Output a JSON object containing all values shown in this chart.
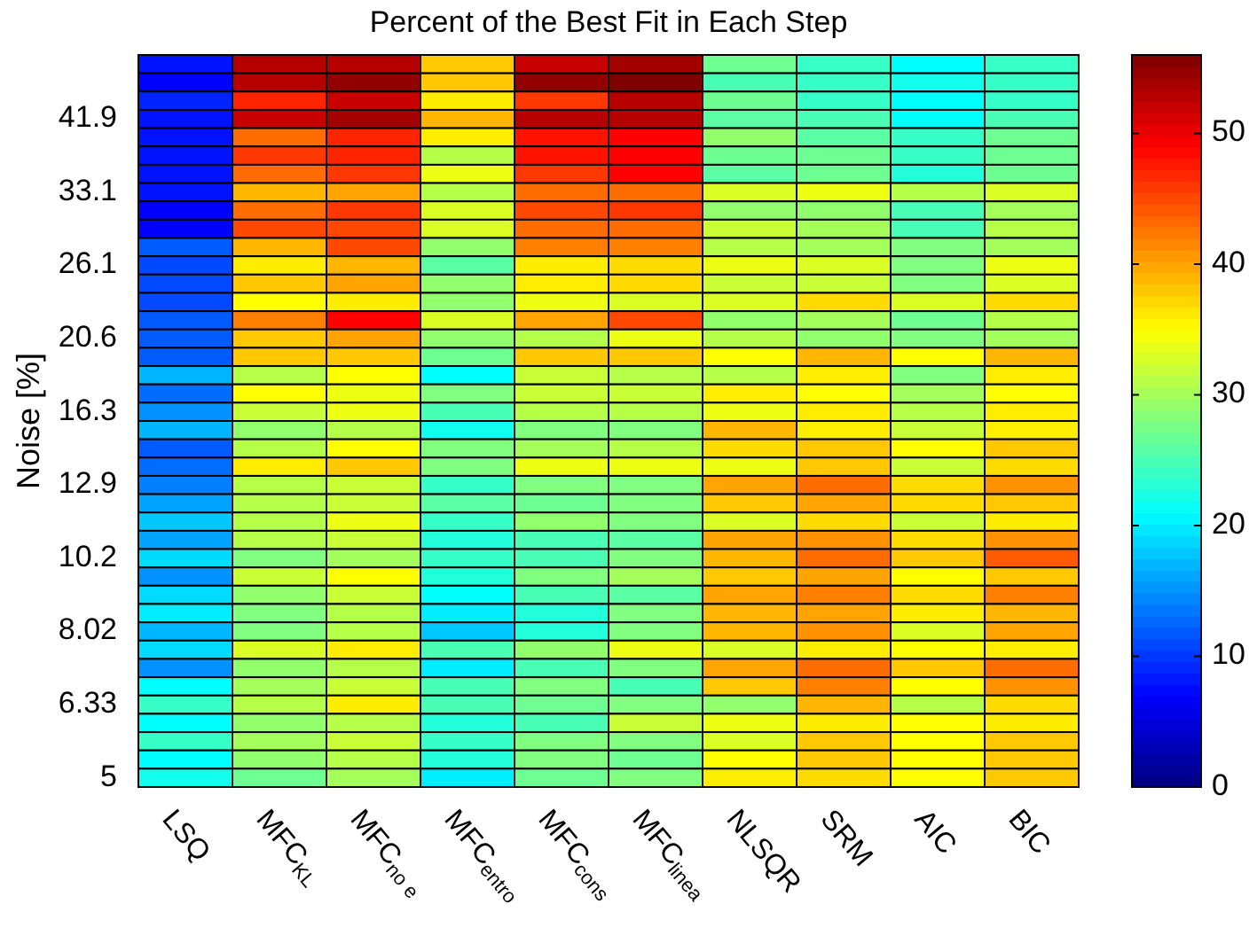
{
  "chart_data": {
    "type": "heatmap",
    "title": "Percent of the Best Fit in Each Step",
    "ylabel": "Noise [%]",
    "categories": [
      "LSQ",
      "MFC$_{KL}$",
      "MFC$_{no e}$",
      "MFC$_{entro}$",
      "MFC$_{cons}$",
      "MFC$_{linea}$",
      "NLSQR",
      "SRM",
      "AIC",
      "BIC"
    ],
    "y_categories": [
      null,
      null,
      null,
      "41.9",
      null,
      null,
      null,
      "33.1",
      null,
      null,
      null,
      "26.1",
      null,
      null,
      null,
      "20.6",
      null,
      null,
      null,
      "16.3",
      null,
      null,
      null,
      "12.9",
      null,
      null,
      null,
      "10.2",
      null,
      null,
      null,
      "8.02",
      null,
      null,
      null,
      "6.33",
      null,
      null,
      null,
      "5"
    ],
    "cells": [
      [
        8,
        53,
        53,
        38,
        52,
        54,
        27,
        24,
        21,
        24
      ],
      [
        7,
        53,
        55,
        38,
        55,
        56,
        25,
        24,
        22,
        24
      ],
      [
        9,
        47,
        52,
        36,
        46,
        53,
        27,
        24,
        21,
        24
      ],
      [
        8,
        52,
        54,
        39,
        53,
        53,
        26,
        25,
        21,
        25
      ],
      [
        8,
        43,
        47,
        36,
        48,
        49,
        29,
        26,
        24,
        27
      ],
      [
        8,
        46,
        47,
        31,
        48,
        49,
        27,
        27,
        24,
        27
      ],
      [
        8,
        43,
        46,
        34,
        46,
        49,
        26,
        27,
        23,
        27
      ],
      [
        8,
        39,
        40,
        31,
        43,
        43,
        33,
        34,
        31,
        33
      ],
      [
        7,
        43,
        46,
        33,
        45,
        46,
        29,
        29,
        25,
        30
      ],
      [
        7,
        45,
        45,
        33,
        43,
        43,
        32,
        30,
        25,
        31
      ],
      [
        12,
        39,
        45,
        29,
        42,
        42,
        31,
        30,
        28,
        30
      ],
      [
        11,
        36,
        39,
        26,
        36,
        37,
        34,
        33,
        28,
        34
      ],
      [
        11,
        38,
        40,
        29,
        36,
        37,
        32,
        32,
        28,
        33
      ],
      [
        11,
        35,
        36,
        29,
        34,
        33,
        33,
        37,
        33,
        37
      ],
      [
        12,
        42,
        49,
        33,
        40,
        45,
        29,
        30,
        27,
        31
      ],
      [
        12,
        38,
        40,
        29,
        31,
        34,
        31,
        29,
        28,
        30
      ],
      [
        12,
        38,
        38,
        27,
        38,
        38,
        35,
        39,
        35,
        39
      ],
      [
        17,
        31,
        35,
        21,
        32,
        31,
        31,
        36,
        28,
        36
      ],
      [
        13,
        35,
        34,
        28,
        32,
        32,
        36,
        35,
        30,
        35
      ],
      [
        15,
        32,
        34,
        25,
        31,
        31,
        34,
        36,
        31,
        36
      ],
      [
        17,
        29,
        31,
        22,
        28,
        28,
        39,
        36,
        32,
        36
      ],
      [
        12,
        31,
        35,
        28,
        30,
        31,
        37,
        38,
        35,
        38
      ],
      [
        13,
        36,
        38,
        28,
        34,
        34,
        34,
        38,
        32,
        37
      ],
      [
        14,
        31,
        32,
        24,
        28,
        28,
        40,
        43,
        37,
        41
      ],
      [
        16,
        31,
        32,
        26,
        27,
        28,
        38,
        40,
        37,
        38
      ],
      [
        18,
        31,
        34,
        24,
        29,
        28,
        33,
        37,
        32,
        36
      ],
      [
        16,
        31,
        32,
        23,
        25,
        26,
        40,
        41,
        37,
        41
      ],
      [
        19,
        28,
        30,
        24,
        25,
        28,
        39,
        43,
        38,
        44
      ],
      [
        15,
        32,
        35,
        23,
        28,
        30,
        38,
        40,
        35,
        38
      ],
      [
        19,
        29,
        32,
        21,
        25,
        26,
        40,
        42,
        37,
        42
      ],
      [
        20,
        28,
        31,
        20,
        23,
        28,
        39,
        40,
        36,
        39
      ],
      [
        17,
        28,
        31,
        18,
        23,
        28,
        39,
        41,
        33,
        40
      ],
      [
        19,
        33,
        36,
        25,
        29,
        34,
        33,
        36,
        35,
        36
      ],
      [
        15,
        29,
        31,
        20,
        25,
        28,
        40,
        43,
        38,
        43
      ],
      [
        21,
        30,
        32,
        25,
        28,
        25,
        38,
        42,
        35,
        41
      ],
      [
        24,
        31,
        36,
        25,
        27,
        28,
        29,
        39,
        31,
        37
      ],
      [
        21,
        29,
        31,
        23,
        25,
        32,
        34,
        36,
        35,
        36
      ],
      [
        24,
        30,
        32,
        24,
        28,
        28,
        33,
        38,
        35,
        38
      ],
      [
        21,
        29,
        31,
        23,
        28,
        27,
        35,
        38,
        35,
        38
      ],
      [
        22,
        27,
        30,
        20,
        27,
        28,
        36,
        37,
        35,
        38
      ]
    ],
    "clim": [
      0,
      56
    ],
    "cticks": [
      0,
      10,
      20,
      30,
      40,
      50
    ]
  }
}
